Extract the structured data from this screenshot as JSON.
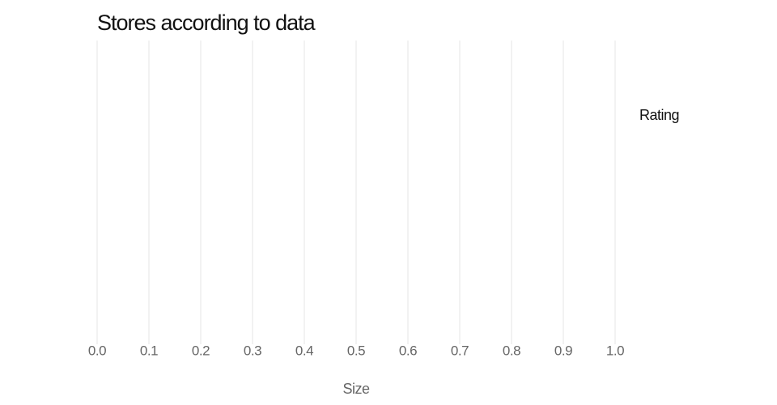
{
  "chart_data": {
    "type": "scatter",
    "title": "Stores according to data",
    "x_label": "Size",
    "legend_title": "Rating",
    "xlim": [
      0,
      1
    ],
    "xticks": [
      {
        "value": 0,
        "label": "0.0"
      },
      0.1,
      0.2,
      0.3,
      0.4,
      0.5,
      0.6,
      0.7,
      0.8,
      0.9,
      {
        "value": 1,
        "label": "1.0"
      }
    ],
    "grid": true
  }
}
